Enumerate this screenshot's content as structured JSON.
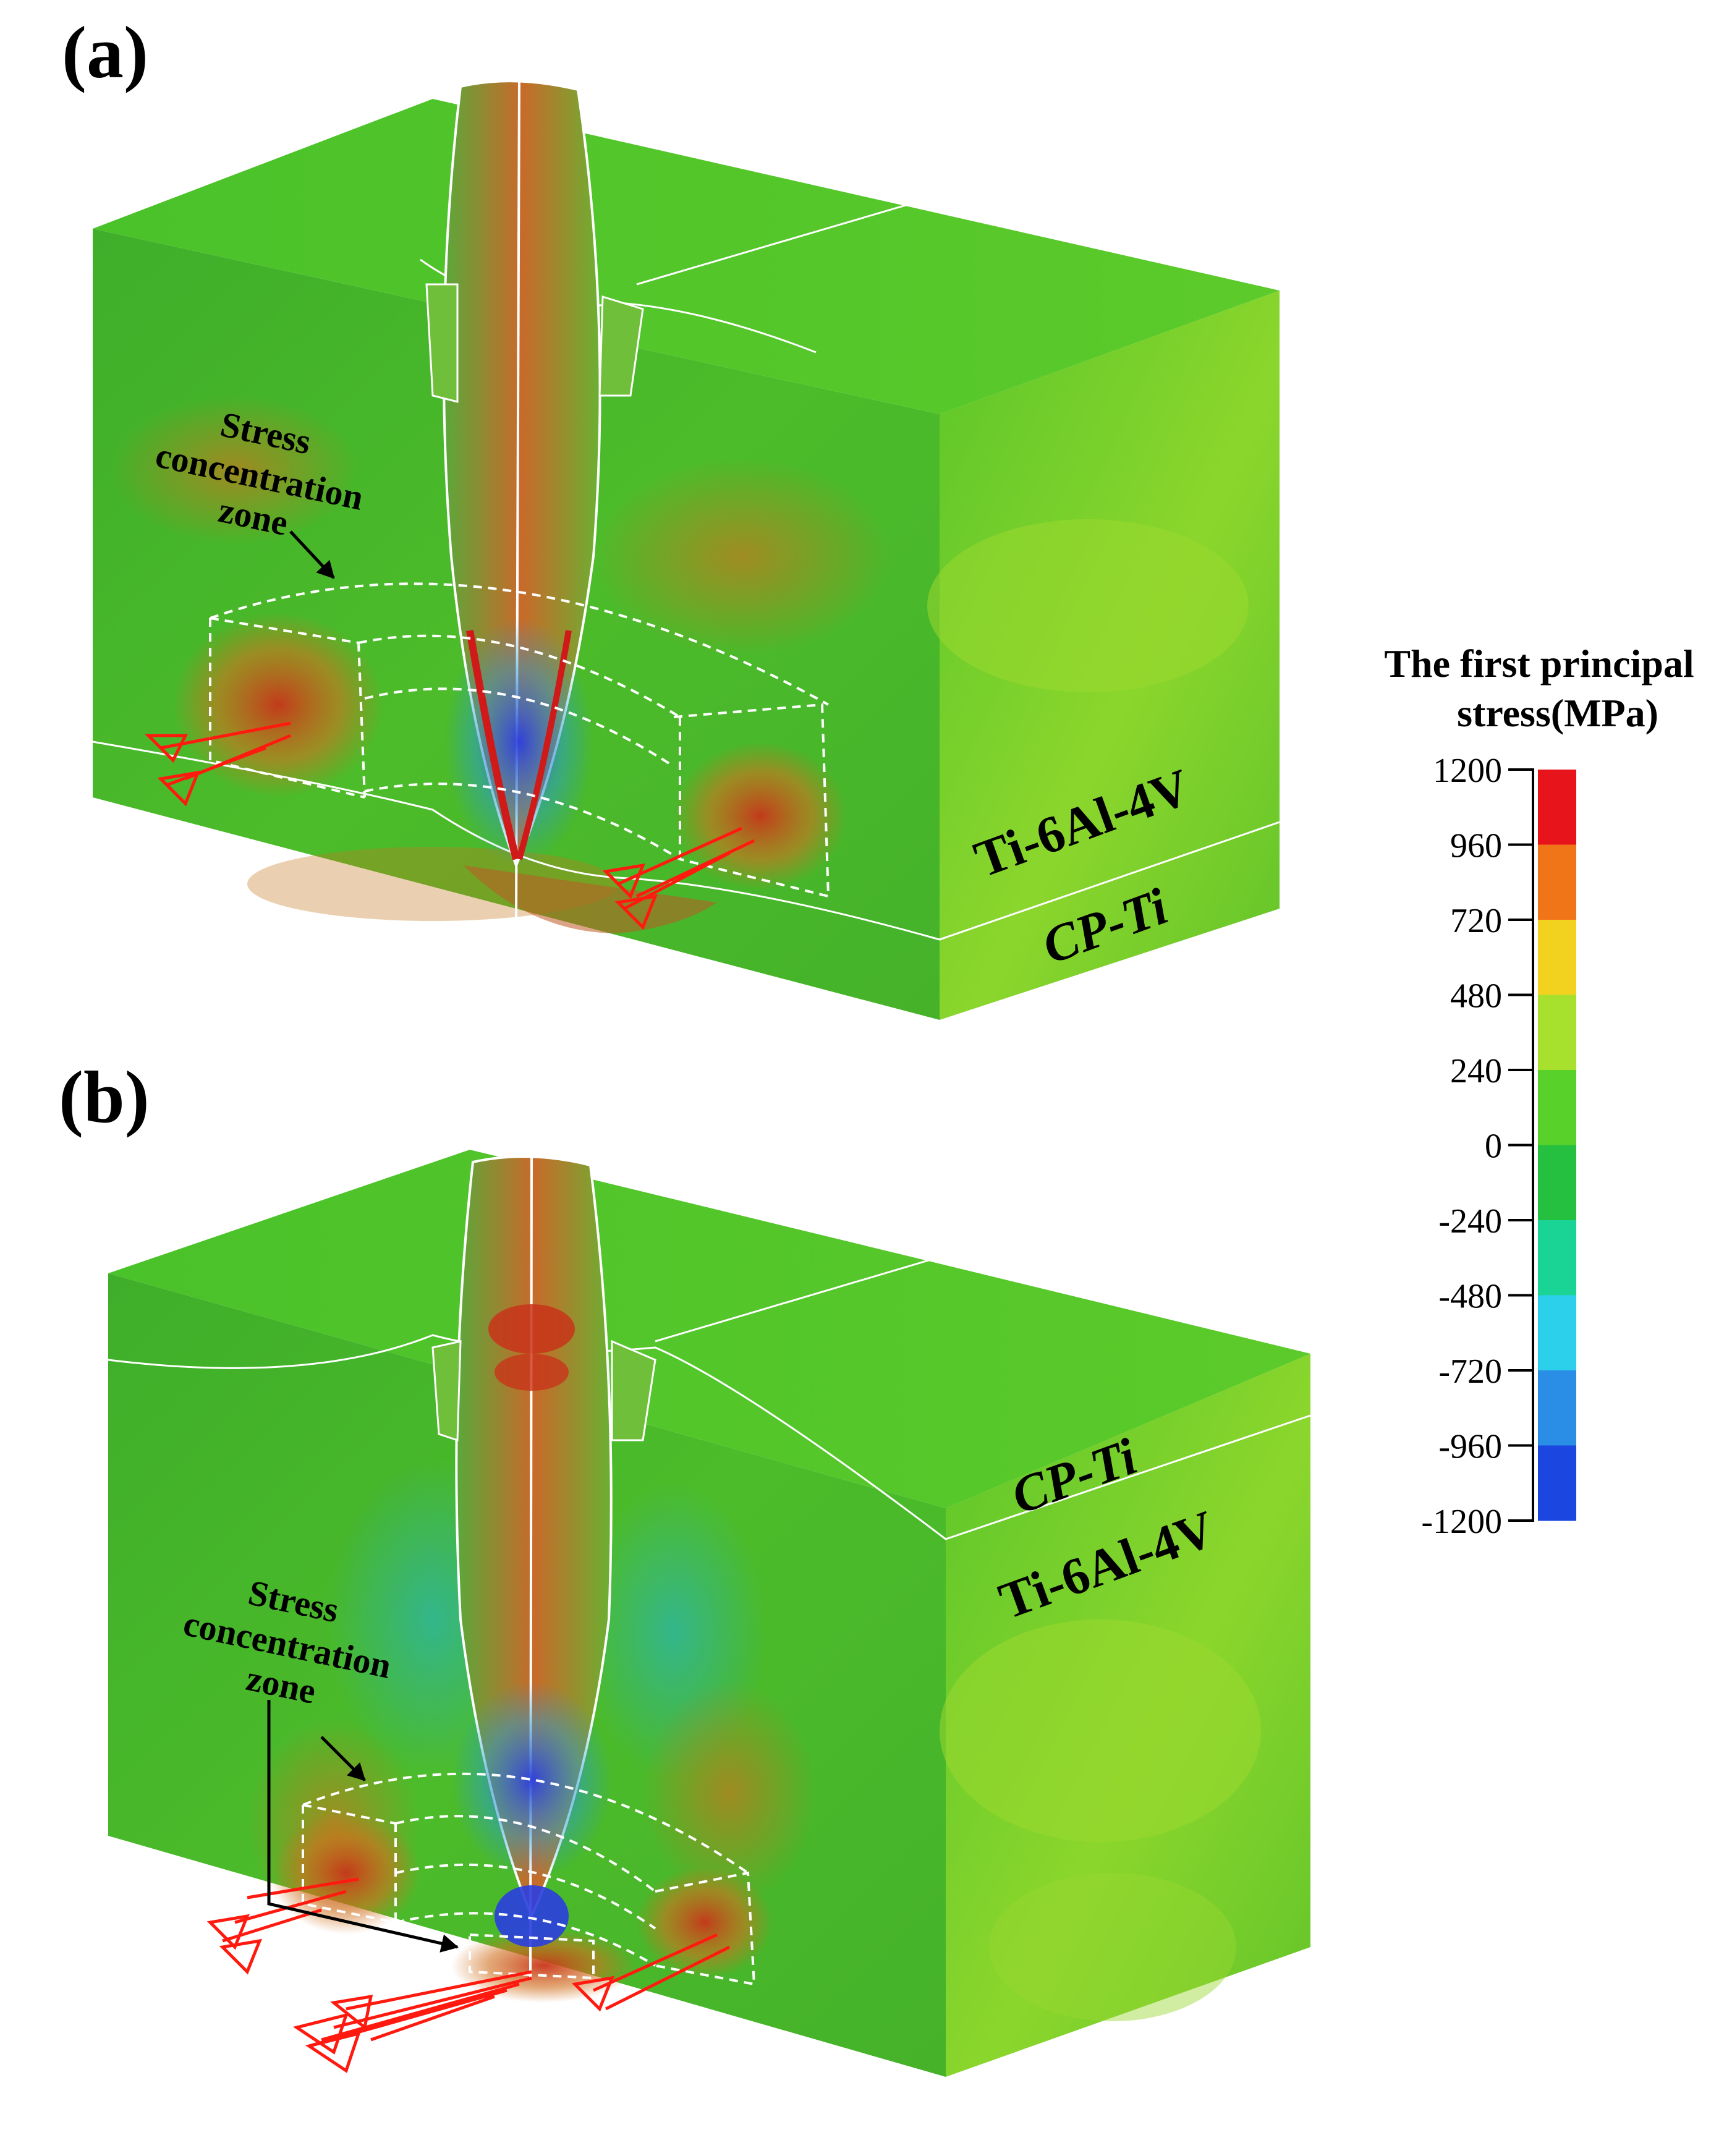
{
  "panels": [
    {
      "id": "a",
      "label": "(a)",
      "annotation": [
        "Stress",
        "concentration",
        "zone"
      ],
      "layer_top": "Ti-6Al-4V",
      "layer_bottom": "CP-Ti"
    },
    {
      "id": "b",
      "label": "(b)",
      "annotation": [
        "Stress",
        "concentration",
        "zone"
      ],
      "layer_top": "CP-Ti",
      "layer_bottom": "Ti-6Al-4V"
    }
  ],
  "legend": {
    "title_lines": [
      "The first principal",
      "stress(MPa)"
    ],
    "ticks": [
      "1200",
      "960",
      "720",
      "480",
      "240",
      "0",
      "-240",
      "-480",
      "-720",
      "-960",
      "-1200"
    ],
    "colors": [
      "#e8141c",
      "#f07418",
      "#f2d21e",
      "#a8e02e",
      "#58d22a",
      "#26c040",
      "#1ad496",
      "#2cd0ea",
      "#2a8ee6",
      "#1c46e0"
    ]
  },
  "colors": {
    "green_base": "#4fc42a",
    "green_dark": "#38a42a",
    "green_light": "#8ed62e",
    "stress_red": "#c83a16",
    "stress_orange": "#d8721c",
    "stress_blue": "#2a5ad8",
    "dashed_line": "#ffffff",
    "arrow": "#ff1a10"
  }
}
